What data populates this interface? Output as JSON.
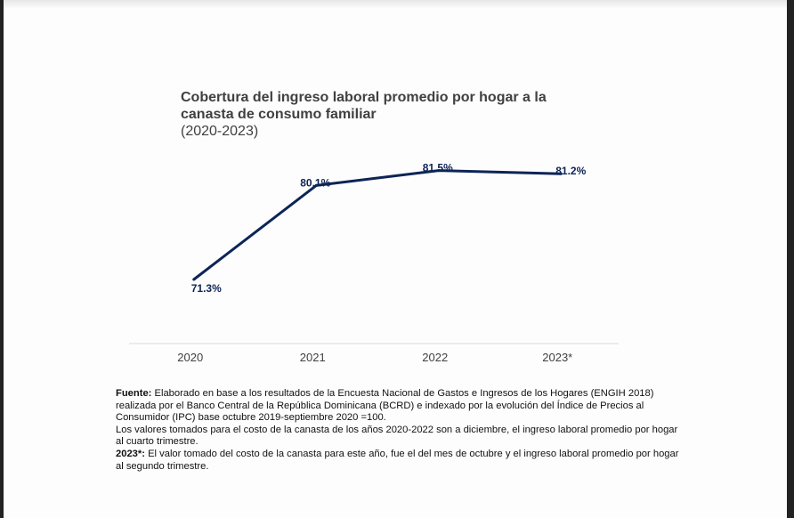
{
  "chart_data": {
    "type": "line",
    "title": "Cobertura del ingreso laboral promedio por hogar a la canasta de consumo familiar",
    "subtitle": "(2020-2023)",
    "xlabel": "",
    "ylabel": "",
    "categories": [
      "2020",
      "2021",
      "2022",
      "2023*"
    ],
    "series": [
      {
        "name": "Cobertura",
        "values": [
          71.3,
          80.1,
          81.5,
          81.2
        ],
        "labels": [
          "71.3%",
          "80.1%",
          "81.5%",
          "81.2%"
        ],
        "color": "#0d2456"
      }
    ],
    "ylim": [
      65.3,
      83.3
    ],
    "grid": false,
    "legend": "none"
  },
  "notes": {
    "fuente_label": "Fuente:",
    "fuente_text": " Elaborado en base a los resultados de la Encuesta Nacional de Gastos e Ingresos de los Hogares (ENGIH 2018) realizada por el Banco Central de la República Dominicana (BCRD) e indexado por la evolución del Índice de Precios al Consumidor  (IPC) base octubre 2019-septiembre 2020 =100.",
    "valores_text": "Los valores tomados para el costo de la canasta de los años 2020-2022 son a diciembre, el ingreso laboral promedio por hogar al cuarto trimestre.",
    "note2023_label": "2023*:",
    "note2023_text": " El valor tomado del costo de la canasta para este año, fue el del mes de octubre y el ingreso laboral promedio por hogar al segundo trimestre."
  },
  "colors": {
    "line": "#0d2456",
    "axis": "#d9d9d9",
    "text": "#404040"
  }
}
